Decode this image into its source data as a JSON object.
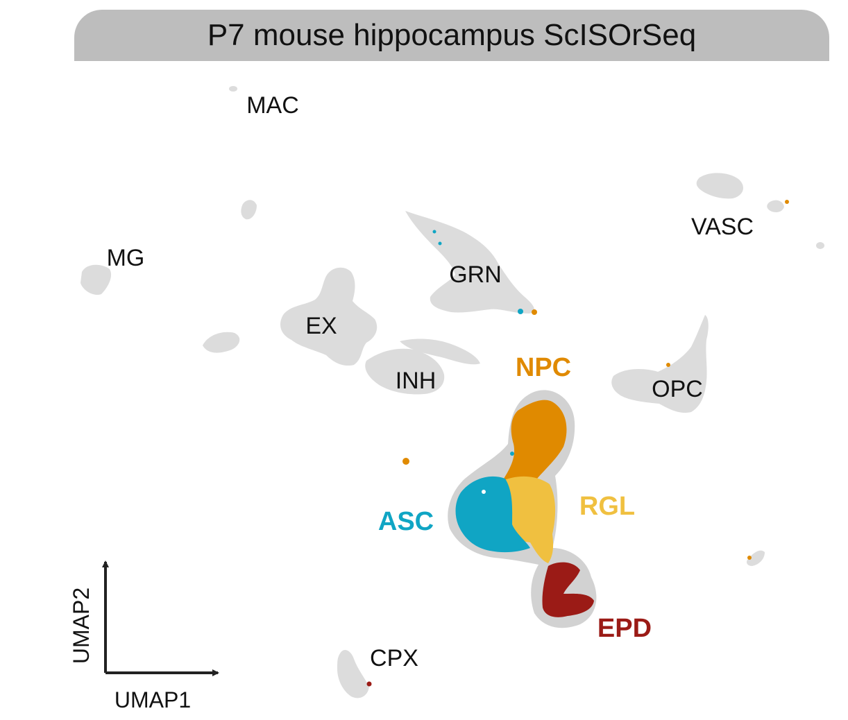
{
  "title": "P7 mouse hippocampus ScISOrSeq",
  "colors": {
    "background_cells": "#dcdcdc",
    "highlight_halo": "#cfcfcf",
    "NPC": "#e08a00",
    "RGL": "#f0c040",
    "ASC": "#10a5c4",
    "EPD": "#9b1b16",
    "axis": "#222222"
  },
  "chart_data": {
    "type": "scatter",
    "title": "P7 mouse hippocampus ScISOrSeq",
    "xlabel": "UMAP1",
    "ylabel": "UMAP2",
    "ticks": "none",
    "grid": false,
    "legend": "none",
    "clusters": [
      {
        "name": "MAC",
        "highlight": false
      },
      {
        "name": "MG",
        "highlight": false
      },
      {
        "name": "GRN",
        "highlight": false
      },
      {
        "name": "EX",
        "highlight": false
      },
      {
        "name": "INH",
        "highlight": false
      },
      {
        "name": "VASC",
        "highlight": false
      },
      {
        "name": "OPC",
        "highlight": false
      },
      {
        "name": "CPX",
        "highlight": false
      },
      {
        "name": "NPC",
        "highlight": true
      },
      {
        "name": "RGL",
        "highlight": true
      },
      {
        "name": "ASC",
        "highlight": true
      },
      {
        "name": "EPD",
        "highlight": true
      }
    ]
  }
}
